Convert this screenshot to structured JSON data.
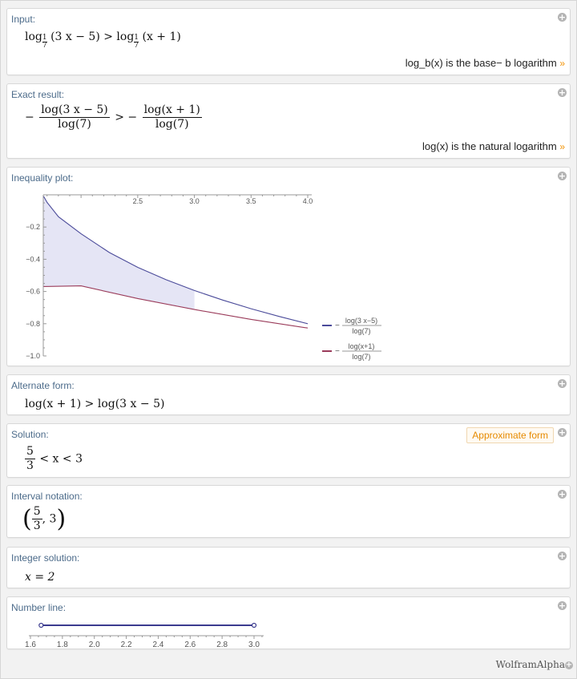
{
  "pods": {
    "input": {
      "title": "Input:",
      "expr": {
        "log_word": "log",
        "base_num": "1",
        "base_den": "7",
        "arg1": "(3 x − 5)",
        "gt": " > ",
        "arg2": "(x + 1)"
      },
      "note": "log_b(x) is the base− b logarithm",
      "note_arrow": "»"
    },
    "exact": {
      "title": "Exact result:",
      "minus1": "−",
      "num1": "log(3 x − 5)",
      "den1": "log(7)",
      "gt": " > ",
      "minus2": "−",
      "num2": "log(x + 1)",
      "den2": "log(7)",
      "note": "log(x) is the natural logarithm",
      "note_arrow": "»"
    },
    "plot": {
      "title": "Inequality plot:"
    },
    "alternate": {
      "title": "Alternate form:",
      "expr": "log(x + 1) > log(3 x − 5)"
    },
    "solution": {
      "title": "Solution:",
      "button": "Approximate form",
      "num": "5",
      "den": "3",
      "rest": " < x < 3"
    },
    "interval": {
      "title": "Interval notation:",
      "lparen": "(",
      "num": "5",
      "den": "3",
      "rest": ", 3",
      "rparen": ")"
    },
    "integer": {
      "title": "Integer solution:",
      "expr": "x = 2"
    },
    "numberline": {
      "title": "Number line:",
      "ticks": [
        "1.6",
        "1.8",
        "2.0",
        "2.2",
        "2.4",
        "2.6",
        "2.8",
        "3.0"
      ],
      "interval": [
        1.6667,
        3.0
      ],
      "color": "#3b3b8f"
    }
  },
  "chart_data": {
    "type": "line",
    "x_ticks": [
      "2.5",
      "3.0",
      "3.5",
      "4.0"
    ],
    "y_ticks": [
      "−0.2",
      "−0.4",
      "−0.6",
      "−0.8",
      "−1.0"
    ],
    "xlim": [
      1.6667,
      4.0
    ],
    "ylim": [
      -1.0,
      0.0
    ],
    "series": [
      {
        "color": "#4b4b9a",
        "label_num": "log(3 x−5)",
        "label_den": "log(7)",
        "label_sign": "−",
        "x": [
          1.67,
          1.7,
          1.8,
          2.0,
          2.25,
          2.5,
          2.75,
          3.0,
          3.25,
          3.5,
          3.75,
          4.0
        ],
        "y": [
          -0.01,
          -0.047,
          -0.136,
          -0.242,
          -0.358,
          -0.45,
          -0.527,
          -0.594,
          -0.653,
          -0.707,
          -0.755,
          -0.8
        ]
      },
      {
        "color": "#9a3b5a",
        "label_num": "log(x+1)",
        "label_den": "log(7)",
        "label_sign": "−",
        "x": [
          1.67,
          2.0,
          2.5,
          3.0,
          3.5,
          4.0
        ],
        "y": [
          -0.569,
          -0.565,
          -0.644,
          -0.712,
          -0.773,
          -0.827
        ]
      }
    ],
    "fill": {
      "color": "#e0e0f3",
      "between_x": [
        1.6667,
        3.0
      ]
    }
  },
  "footer": {
    "brand": "WolframAlpha"
  }
}
